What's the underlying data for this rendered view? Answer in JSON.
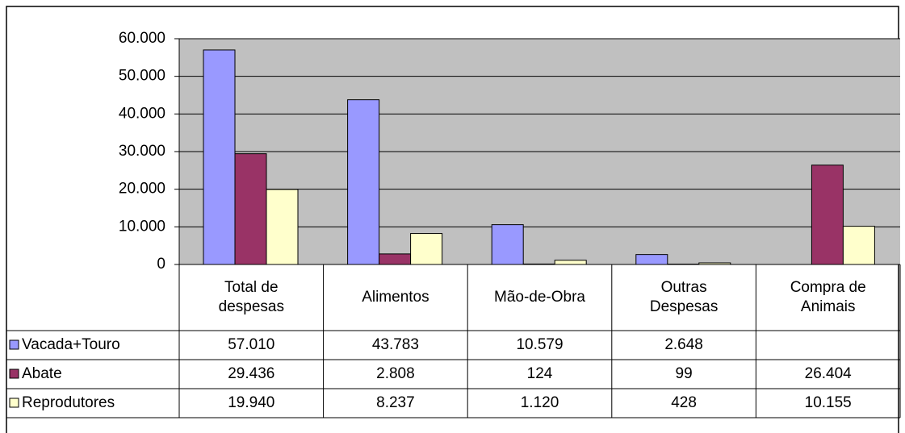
{
  "chart_data": {
    "type": "bar",
    "categories": [
      "Total de despesas",
      "Alimentos",
      "Mão-de-Obra",
      "Outras Despesas",
      "Compra de Animais"
    ],
    "series": [
      {
        "name": "Vacada+Touro",
        "color": "#9999ff",
        "values": [
          57010,
          43783,
          10579,
          2648,
          null
        ],
        "value_labels": [
          "57.010",
          "43.783",
          "10.579",
          "2.648",
          null
        ]
      },
      {
        "name": "Abate",
        "color": "#993366",
        "values": [
          29436,
          2808,
          124,
          99,
          26404
        ],
        "value_labels": [
          "29.436",
          "2.808",
          "124",
          "99",
          "26.404"
        ]
      },
      {
        "name": "Reprodutores",
        "color": "#ffffcc",
        "values": [
          19940,
          8237,
          1120,
          428,
          10155
        ],
        "value_labels": [
          "19.940",
          "8.237",
          "1.120",
          "428",
          "10.155"
        ]
      }
    ],
    "ylim": [
      0,
      60000
    ],
    "yticks": [
      0,
      {
        "value": 10000,
        "label": "10.000"
      },
      {
        "value": 20000,
        "label": "20.000"
      },
      {
        "value": 30000,
        "label": "30.000"
      },
      {
        "value": 40000,
        "label": "40.000"
      },
      {
        "value": 50000,
        "label": "50.000"
      },
      {
        "value": 60000,
        "label": "60.000"
      }
    ],
    "grid": true,
    "plot_background": "#c0c0c0",
    "data_table": true
  }
}
